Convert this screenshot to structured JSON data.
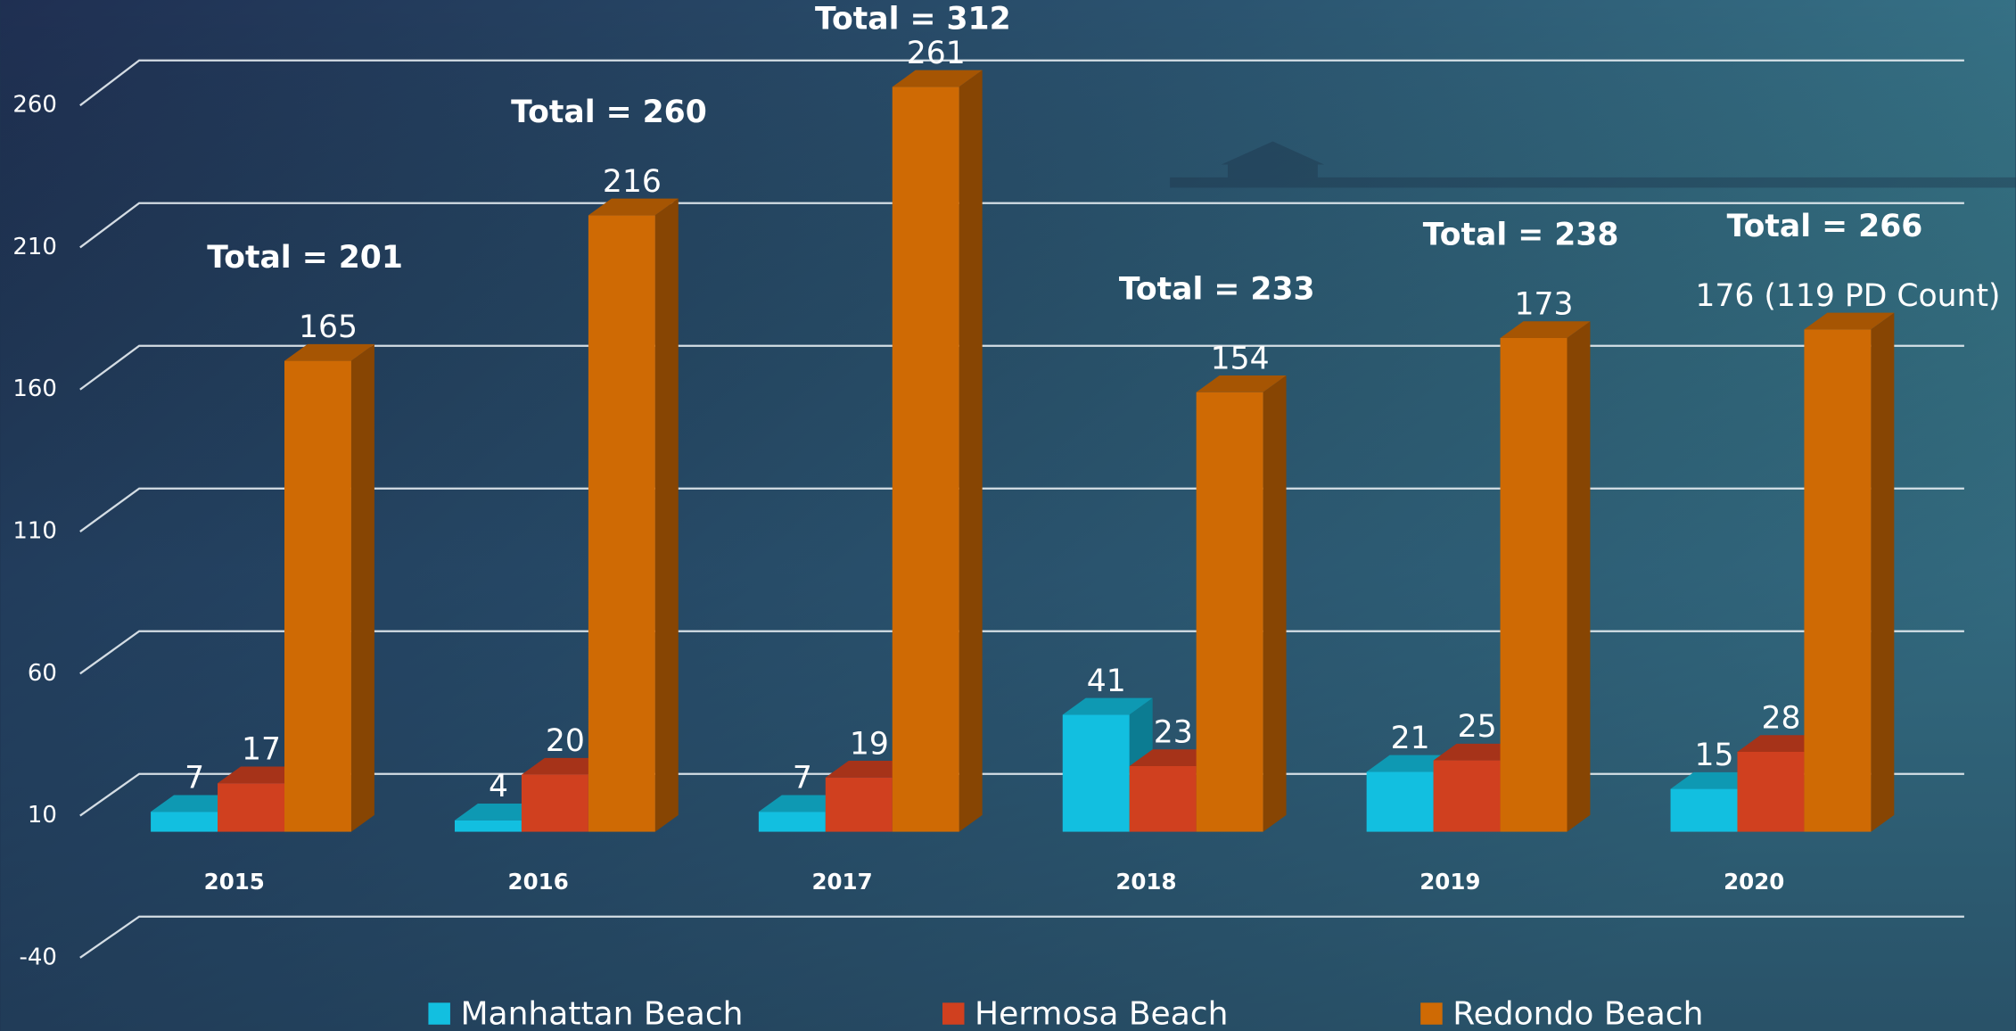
{
  "chart_data": {
    "type": "bar",
    "categories": [
      "2015",
      "2016",
      "2017",
      "2018",
      "2019",
      "2020"
    ],
    "series": [
      {
        "name": "Manhattan Beach",
        "color": "#12bfe0",
        "values": [
          7,
          4,
          7,
          41,
          21,
          15
        ]
      },
      {
        "name": "Hermosa Beach",
        "color": "#d0401f",
        "values": [
          17,
          20,
          19,
          23,
          25,
          28
        ]
      },
      {
        "name": "Redondo Beach",
        "color": "#cf6a04",
        "values": [
          165,
          216,
          261,
          154,
          173,
          176
        ],
        "value_labels": [
          "165",
          "216",
          "261",
          "154",
          "173",
          "176 (119 PD Count)"
        ]
      }
    ],
    "annotations": [
      "Total = 201",
      "Total = 260",
      "Total = 312",
      "Total = 233",
      "Total = 238",
      "Total = 266"
    ],
    "ylim": [
      -40,
      260
    ],
    "yticks": [
      -40,
      10,
      60,
      110,
      160,
      210,
      260
    ],
    "grid": true,
    "legend": "bottom"
  }
}
